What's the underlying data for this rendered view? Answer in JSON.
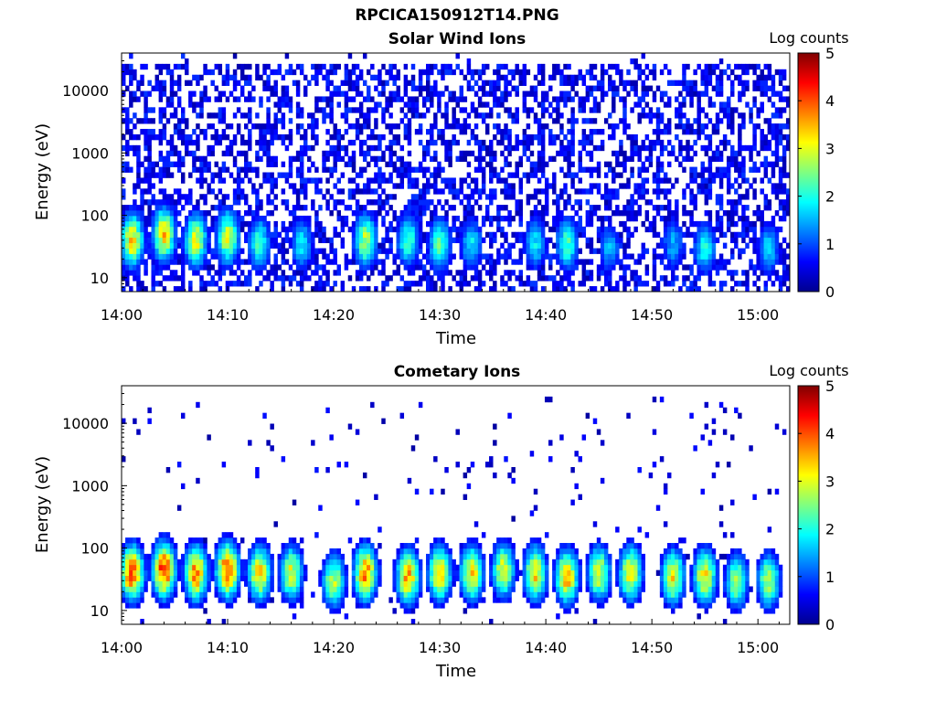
{
  "figure_title": "RPCICA150912T14.PNG",
  "colorbar": {
    "label": "Log counts",
    "ticks": [
      "0",
      "1",
      "2",
      "3",
      "4",
      "5"
    ],
    "range": [
      0,
      5
    ],
    "colormap": "jet"
  },
  "chart_data": [
    {
      "type": "heatmap",
      "title": "Solar Wind Ions",
      "xlabel": "Time",
      "ylabel": "Energy (eV)",
      "x_ticks": [
        "14:00",
        "14:10",
        "14:20",
        "14:30",
        "14:40",
        "14:50",
        "15:00"
      ],
      "y_ticks": [
        "10",
        "100",
        "1000",
        "10000"
      ],
      "y_scale": "log",
      "ylim": [
        6,
        40000
      ],
      "xlim": [
        "14:00",
        "15:03"
      ],
      "colorbar_label": "Log counts",
      "colorbar_range": [
        0,
        5
      ],
      "bursts": [
        {
          "time": "14:01",
          "energy_eV": 40,
          "peak_log_counts": 3.3
        },
        {
          "time": "14:04",
          "energy_eV": 50,
          "peak_log_counts": 3.3
        },
        {
          "time": "14:07",
          "energy_eV": 40,
          "peak_log_counts": 3.0
        },
        {
          "time": "14:10",
          "energy_eV": 45,
          "peak_log_counts": 3.0
        },
        {
          "time": "14:13",
          "energy_eV": 35,
          "peak_log_counts": 2.2
        },
        {
          "time": "14:17",
          "energy_eV": 35,
          "peak_log_counts": 1.8
        },
        {
          "time": "14:23",
          "energy_eV": 40,
          "peak_log_counts": 2.8
        },
        {
          "time": "14:27",
          "energy_eV": 40,
          "peak_log_counts": 2.2
        },
        {
          "time": "14:30",
          "energy_eV": 35,
          "peak_log_counts": 2.3
        },
        {
          "time": "14:33",
          "energy_eV": 35,
          "peak_log_counts": 1.8
        },
        {
          "time": "14:39",
          "energy_eV": 35,
          "peak_log_counts": 1.8
        },
        {
          "time": "14:42",
          "energy_eV": 35,
          "peak_log_counts": 2.2
        },
        {
          "time": "14:46",
          "energy_eV": 30,
          "peak_log_counts": 1.5
        },
        {
          "time": "14:52",
          "energy_eV": 35,
          "peak_log_counts": 1.5
        },
        {
          "time": "14:55",
          "energy_eV": 30,
          "peak_log_counts": 2.0
        },
        {
          "time": "15:01",
          "energy_eV": 30,
          "peak_log_counts": 1.7
        }
      ],
      "background_log_counts": 0.5,
      "background_coverage": 0.5
    },
    {
      "type": "heatmap",
      "title": "Cometary Ions",
      "xlabel": "Time",
      "ylabel": "Energy (eV)",
      "x_ticks": [
        "14:00",
        "14:10",
        "14:20",
        "14:30",
        "14:40",
        "14:50",
        "15:00"
      ],
      "y_ticks": [
        "10",
        "100",
        "1000",
        "10000"
      ],
      "y_scale": "log",
      "ylim": [
        6,
        40000
      ],
      "xlim": [
        "14:00",
        "15:03"
      ],
      "colorbar_label": "Log counts",
      "colorbar_range": [
        0,
        5
      ],
      "bursts": [
        {
          "time": "14:01",
          "energy_eV": 40,
          "peak_log_counts": 4.1
        },
        {
          "time": "14:04",
          "energy_eV": 45,
          "peak_log_counts": 4.2
        },
        {
          "time": "14:07",
          "energy_eV": 40,
          "peak_log_counts": 3.8
        },
        {
          "time": "14:10",
          "energy_eV": 45,
          "peak_log_counts": 4.1
        },
        {
          "time": "14:13",
          "energy_eV": 40,
          "peak_log_counts": 3.4
        },
        {
          "time": "14:16",
          "energy_eV": 40,
          "peak_log_counts": 3.0
        },
        {
          "time": "14:20",
          "energy_eV": 30,
          "peak_log_counts": 2.8
        },
        {
          "time": "14:23",
          "energy_eV": 40,
          "peak_log_counts": 3.8
        },
        {
          "time": "14:27",
          "energy_eV": 35,
          "peak_log_counts": 3.6
        },
        {
          "time": "14:30",
          "energy_eV": 40,
          "peak_log_counts": 3.4
        },
        {
          "time": "14:33",
          "energy_eV": 40,
          "peak_log_counts": 3.3
        },
        {
          "time": "14:36",
          "energy_eV": 45,
          "peak_log_counts": 3.0
        },
        {
          "time": "14:39",
          "energy_eV": 40,
          "peak_log_counts": 3.3
        },
        {
          "time": "14:42",
          "energy_eV": 35,
          "peak_log_counts": 3.5
        },
        {
          "time": "14:45",
          "energy_eV": 40,
          "peak_log_counts": 3.0
        },
        {
          "time": "14:48",
          "energy_eV": 40,
          "peak_log_counts": 3.2
        },
        {
          "time": "14:52",
          "energy_eV": 35,
          "peak_log_counts": 3.2
        },
        {
          "time": "14:55",
          "energy_eV": 35,
          "peak_log_counts": 3.3
        },
        {
          "time": "14:58",
          "energy_eV": 30,
          "peak_log_counts": 2.7
        },
        {
          "time": "15:01",
          "energy_eV": 30,
          "peak_log_counts": 2.8
        }
      ],
      "background_log_counts": 0.4,
      "background_coverage": 0.03
    }
  ]
}
